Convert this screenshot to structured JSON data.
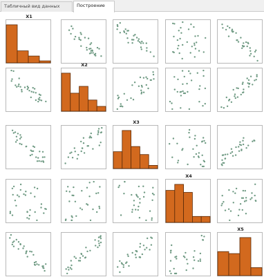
{
  "tabs": [
    {
      "label": "Табличный вид данных",
      "active": false
    },
    {
      "label": "Построение",
      "active": true
    }
  ],
  "colors": {
    "histogram_fill": "#d2691e",
    "histogram_stroke": "#5a2a08",
    "point": "#6f9a83",
    "border": "#b8b8b8"
  },
  "chart_data": {
    "type": "scatter_matrix",
    "variables": [
      "X1",
      "X2",
      "X3",
      "X4",
      "X5"
    ],
    "histograms": {
      "X1": [
        0.95,
        0.3,
        0.17,
        0.05
      ],
      "X2": [
        0.95,
        0.45,
        0.62,
        0.28,
        0.12
      ],
      "X3": [
        0.42,
        0.95,
        0.55,
        0.35,
        0.08
      ],
      "X4": [
        0.8,
        0.95,
        0.75,
        0.15,
        0.15
      ],
      "X5": [
        0.6,
        0.55,
        0.95,
        0.2
      ]
    },
    "scatter_trends": {
      "X1-X2": -0.7,
      "X1-X3": -0.7,
      "X1-X4": -0.2,
      "X1-X5": -0.75,
      "X2-X3": 0.6,
      "X2-X4": 0.1,
      "X2-X5": 0.75,
      "X3-X4": -0.2,
      "X3-X5": 0.7,
      "X4-X5": 0.3
    }
  }
}
